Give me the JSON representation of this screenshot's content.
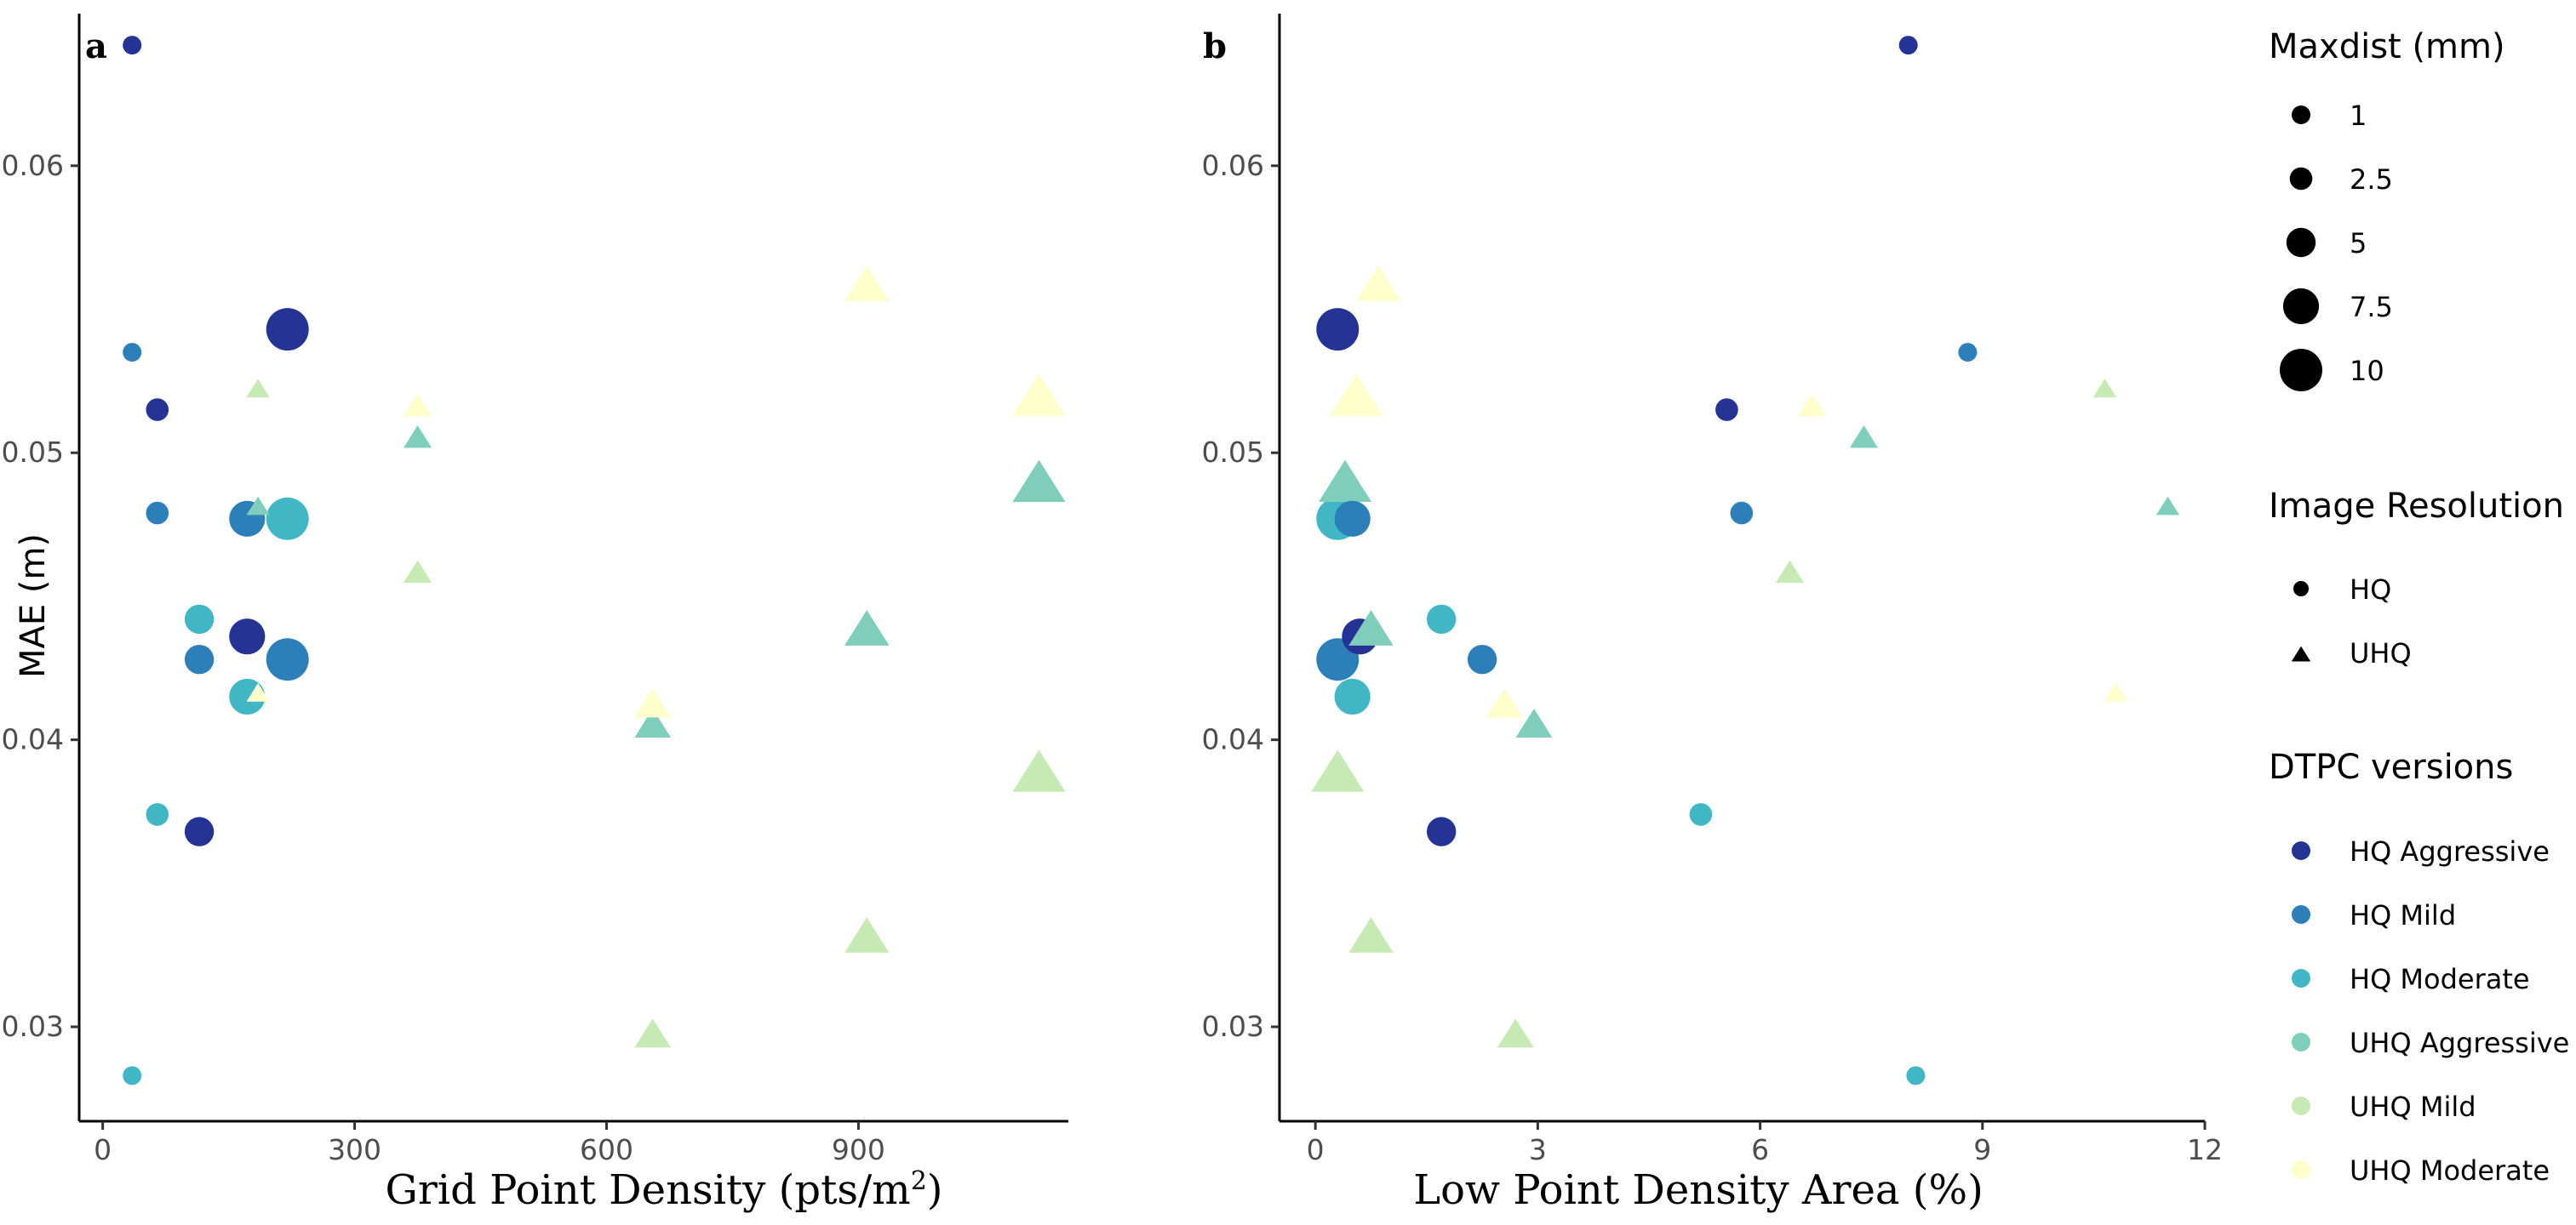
{
  "chart_data": [
    {
      "panel": "a",
      "type": "scatter",
      "xlabel": "Grid Point Density (pts/m",
      "xlabel_superscript": "2",
      "xlabel_suffix": ")",
      "ylabel": "MAE (m)",
      "xlim": [
        -25,
        1150
      ],
      "ylim": [
        0.0268,
        0.0653
      ],
      "xticks": [
        0,
        300,
        600,
        900
      ],
      "xtick_labels": [
        "0",
        "300",
        "600",
        "900"
      ],
      "yticks": [
        0.03,
        0.04,
        0.05,
        0.06
      ],
      "ytick_labels": [
        "0.03",
        "0.04",
        "0.05",
        "0.06"
      ],
      "points": [
        {
          "x": 35,
          "y": 0.0642,
          "version": "HQ Aggressive",
          "resolution": "HQ",
          "maxdist": 1
        },
        {
          "x": 35,
          "y": 0.0535,
          "version": "HQ Mild",
          "resolution": "HQ",
          "maxdist": 1
        },
        {
          "x": 35,
          "y": 0.0283,
          "version": "HQ Moderate",
          "resolution": "HQ",
          "maxdist": 1
        },
        {
          "x": 65,
          "y": 0.0515,
          "version": "HQ Aggressive",
          "resolution": "HQ",
          "maxdist": 2.5
        },
        {
          "x": 65,
          "y": 0.0479,
          "version": "HQ Mild",
          "resolution": "HQ",
          "maxdist": 2.5
        },
        {
          "x": 65,
          "y": 0.0374,
          "version": "HQ Moderate",
          "resolution": "HQ",
          "maxdist": 2.5
        },
        {
          "x": 115,
          "y": 0.0368,
          "version": "HQ Aggressive",
          "resolution": "HQ",
          "maxdist": 5
        },
        {
          "x": 115,
          "y": 0.0428,
          "version": "HQ Mild",
          "resolution": "HQ",
          "maxdist": 5
        },
        {
          "x": 115,
          "y": 0.0442,
          "version": "HQ Moderate",
          "resolution": "HQ",
          "maxdist": 5
        },
        {
          "x": 172,
          "y": 0.0436,
          "version": "HQ Aggressive",
          "resolution": "HQ",
          "maxdist": 7.5
        },
        {
          "x": 172,
          "y": 0.0477,
          "version": "HQ Mild",
          "resolution": "HQ",
          "maxdist": 7.5
        },
        {
          "x": 172,
          "y": 0.0415,
          "version": "HQ Moderate",
          "resolution": "HQ",
          "maxdist": 7.5
        },
        {
          "x": 220,
          "y": 0.0543,
          "version": "HQ Aggressive",
          "resolution": "HQ",
          "maxdist": 10
        },
        {
          "x": 220,
          "y": 0.0428,
          "version": "HQ Mild",
          "resolution": "HQ",
          "maxdist": 10
        },
        {
          "x": 220,
          "y": 0.0477,
          "version": "HQ Moderate",
          "resolution": "HQ",
          "maxdist": 10
        },
        {
          "x": 185,
          "y": 0.0481,
          "version": "UHQ Aggressive",
          "resolution": "UHQ",
          "maxdist": 1
        },
        {
          "x": 185,
          "y": 0.0522,
          "version": "UHQ Mild",
          "resolution": "UHQ",
          "maxdist": 1
        },
        {
          "x": 185,
          "y": 0.0416,
          "version": "UHQ Moderate",
          "resolution": "UHQ",
          "maxdist": 1
        },
        {
          "x": 375,
          "y": 0.0505,
          "version": "UHQ Aggressive",
          "resolution": "UHQ",
          "maxdist": 2.5
        },
        {
          "x": 375,
          "y": 0.0458,
          "version": "UHQ Mild",
          "resolution": "UHQ",
          "maxdist": 2.5
        },
        {
          "x": 375,
          "y": 0.0516,
          "version": "UHQ Moderate",
          "resolution": "UHQ",
          "maxdist": 2.5
        },
        {
          "x": 655,
          "y": 0.0405,
          "version": "UHQ Aggressive",
          "resolution": "UHQ",
          "maxdist": 5
        },
        {
          "x": 655,
          "y": 0.0297,
          "version": "UHQ Mild",
          "resolution": "UHQ",
          "maxdist": 5
        },
        {
          "x": 655,
          "y": 0.0412,
          "version": "UHQ Moderate",
          "resolution": "UHQ",
          "maxdist": 5
        },
        {
          "x": 910,
          "y": 0.0438,
          "version": "UHQ Aggressive",
          "resolution": "UHQ",
          "maxdist": 7.5
        },
        {
          "x": 910,
          "y": 0.0331,
          "version": "UHQ Mild",
          "resolution": "UHQ",
          "maxdist": 7.5
        },
        {
          "x": 910,
          "y": 0.0558,
          "version": "UHQ Moderate",
          "resolution": "UHQ",
          "maxdist": 7.5
        },
        {
          "x": 1115,
          "y": 0.0489,
          "version": "UHQ Aggressive",
          "resolution": "UHQ",
          "maxdist": 10
        },
        {
          "x": 1115,
          "y": 0.0388,
          "version": "UHQ Mild",
          "resolution": "UHQ",
          "maxdist": 10
        },
        {
          "x": 1115,
          "y": 0.0519,
          "version": "UHQ Moderate",
          "resolution": "UHQ",
          "maxdist": 10
        }
      ]
    },
    {
      "panel": "b",
      "type": "scatter",
      "xlabel": "Low Point Density Area (%)",
      "xlabel_superscript": "",
      "xlabel_suffix": "",
      "ylabel": "",
      "xlim": [
        -0.45,
        12
      ],
      "ylim": [
        0.0268,
        0.0653
      ],
      "xticks": [
        0,
        3,
        6,
        9,
        12
      ],
      "xtick_labels": [
        "0",
        "3",
        "6",
        "9",
        "12"
      ],
      "yticks": [
        0.03,
        0.04,
        0.05,
        0.06
      ],
      "ytick_labels": [
        "0.03",
        "0.04",
        "0.05",
        "0.06"
      ],
      "points": [
        {
          "x": 8.0,
          "y": 0.0642,
          "version": "HQ Aggressive",
          "resolution": "HQ",
          "maxdist": 1
        },
        {
          "x": 8.8,
          "y": 0.0535,
          "version": "HQ Mild",
          "resolution": "HQ",
          "maxdist": 1
        },
        {
          "x": 8.1,
          "y": 0.0283,
          "version": "HQ Moderate",
          "resolution": "HQ",
          "maxdist": 1
        },
        {
          "x": 5.55,
          "y": 0.0515,
          "version": "HQ Aggressive",
          "resolution": "HQ",
          "maxdist": 2.5
        },
        {
          "x": 5.75,
          "y": 0.0479,
          "version": "HQ Mild",
          "resolution": "HQ",
          "maxdist": 2.5
        },
        {
          "x": 5.2,
          "y": 0.0374,
          "version": "HQ Moderate",
          "resolution": "HQ",
          "maxdist": 2.5
        },
        {
          "x": 1.7,
          "y": 0.0368,
          "version": "HQ Aggressive",
          "resolution": "HQ",
          "maxdist": 5
        },
        {
          "x": 2.25,
          "y": 0.0428,
          "version": "HQ Mild",
          "resolution": "HQ",
          "maxdist": 5
        },
        {
          "x": 1.7,
          "y": 0.0442,
          "version": "HQ Moderate",
          "resolution": "HQ",
          "maxdist": 5
        },
        {
          "x": 0.6,
          "y": 0.0436,
          "version": "HQ Aggressive",
          "resolution": "HQ",
          "maxdist": 7.5
        },
        {
          "x": 0.5,
          "y": 0.0477,
          "version": "HQ Mild",
          "resolution": "HQ",
          "maxdist": 7.5
        },
        {
          "x": 0.5,
          "y": 0.0415,
          "version": "HQ Moderate",
          "resolution": "HQ",
          "maxdist": 7.5
        },
        {
          "x": 0.3,
          "y": 0.0543,
          "version": "HQ Aggressive",
          "resolution": "HQ",
          "maxdist": 10
        },
        {
          "x": 0.3,
          "y": 0.0428,
          "version": "HQ Mild",
          "resolution": "HQ",
          "maxdist": 10
        },
        {
          "x": 0.3,
          "y": 0.0477,
          "version": "HQ Moderate",
          "resolution": "HQ",
          "maxdist": 10
        },
        {
          "x": 11.5,
          "y": 0.0481,
          "version": "UHQ Aggressive",
          "resolution": "UHQ",
          "maxdist": 1
        },
        {
          "x": 10.65,
          "y": 0.0522,
          "version": "UHQ Mild",
          "resolution": "UHQ",
          "maxdist": 1
        },
        {
          "x": 10.8,
          "y": 0.0416,
          "version": "UHQ Moderate",
          "resolution": "UHQ",
          "maxdist": 1
        },
        {
          "x": 7.4,
          "y": 0.0505,
          "version": "UHQ Aggressive",
          "resolution": "UHQ",
          "maxdist": 2.5
        },
        {
          "x": 6.4,
          "y": 0.0458,
          "version": "UHQ Mild",
          "resolution": "UHQ",
          "maxdist": 2.5
        },
        {
          "x": 6.7,
          "y": 0.0516,
          "version": "UHQ Moderate",
          "resolution": "UHQ",
          "maxdist": 2.5
        },
        {
          "x": 2.95,
          "y": 0.0405,
          "version": "UHQ Aggressive",
          "resolution": "UHQ",
          "maxdist": 5
        },
        {
          "x": 2.7,
          "y": 0.0297,
          "version": "UHQ Mild",
          "resolution": "UHQ",
          "maxdist": 5
        },
        {
          "x": 2.55,
          "y": 0.0412,
          "version": "UHQ Moderate",
          "resolution": "UHQ",
          "maxdist": 5
        },
        {
          "x": 0.75,
          "y": 0.0438,
          "version": "UHQ Aggressive",
          "resolution": "UHQ",
          "maxdist": 7.5
        },
        {
          "x": 0.75,
          "y": 0.0331,
          "version": "UHQ Mild",
          "resolution": "UHQ",
          "maxdist": 7.5
        },
        {
          "x": 0.85,
          "y": 0.0558,
          "version": "UHQ Moderate",
          "resolution": "UHQ",
          "maxdist": 7.5
        },
        {
          "x": 0.4,
          "y": 0.0489,
          "version": "UHQ Aggressive",
          "resolution": "UHQ",
          "maxdist": 10
        },
        {
          "x": 0.3,
          "y": 0.0388,
          "version": "UHQ Mild",
          "resolution": "UHQ",
          "maxdist": 10
        },
        {
          "x": 0.55,
          "y": 0.0519,
          "version": "UHQ Moderate",
          "resolution": "UHQ",
          "maxdist": 10
        }
      ]
    }
  ],
  "legend": {
    "maxdist": {
      "title": "Maxdist (mm)",
      "entries": [
        {
          "label": "1",
          "value": 1
        },
        {
          "label": "2.5",
          "value": 2.5
        },
        {
          "label": "5",
          "value": 5
        },
        {
          "label": "7.5",
          "value": 7.5
        },
        {
          "label": "10",
          "value": 10
        }
      ]
    },
    "resolution": {
      "title": "Image Resolution",
      "entries": [
        {
          "label": "HQ",
          "shape": "circle"
        },
        {
          "label": "UHQ",
          "shape": "triangle"
        }
      ]
    },
    "versions": {
      "title": "DTPC versions",
      "entries": [
        {
          "label": "HQ Aggressive",
          "color": "#253494"
        },
        {
          "label": "HQ Mild",
          "color": "#2c7fb8"
        },
        {
          "label": "HQ Moderate",
          "color": "#41b6c4"
        },
        {
          "label": "UHQ Aggressive",
          "color": "#7fcdbb"
        },
        {
          "label": "UHQ Mild",
          "color": "#c7e9b4"
        },
        {
          "label": "UHQ Moderate",
          "color": "#ffffcc"
        }
      ]
    }
  }
}
